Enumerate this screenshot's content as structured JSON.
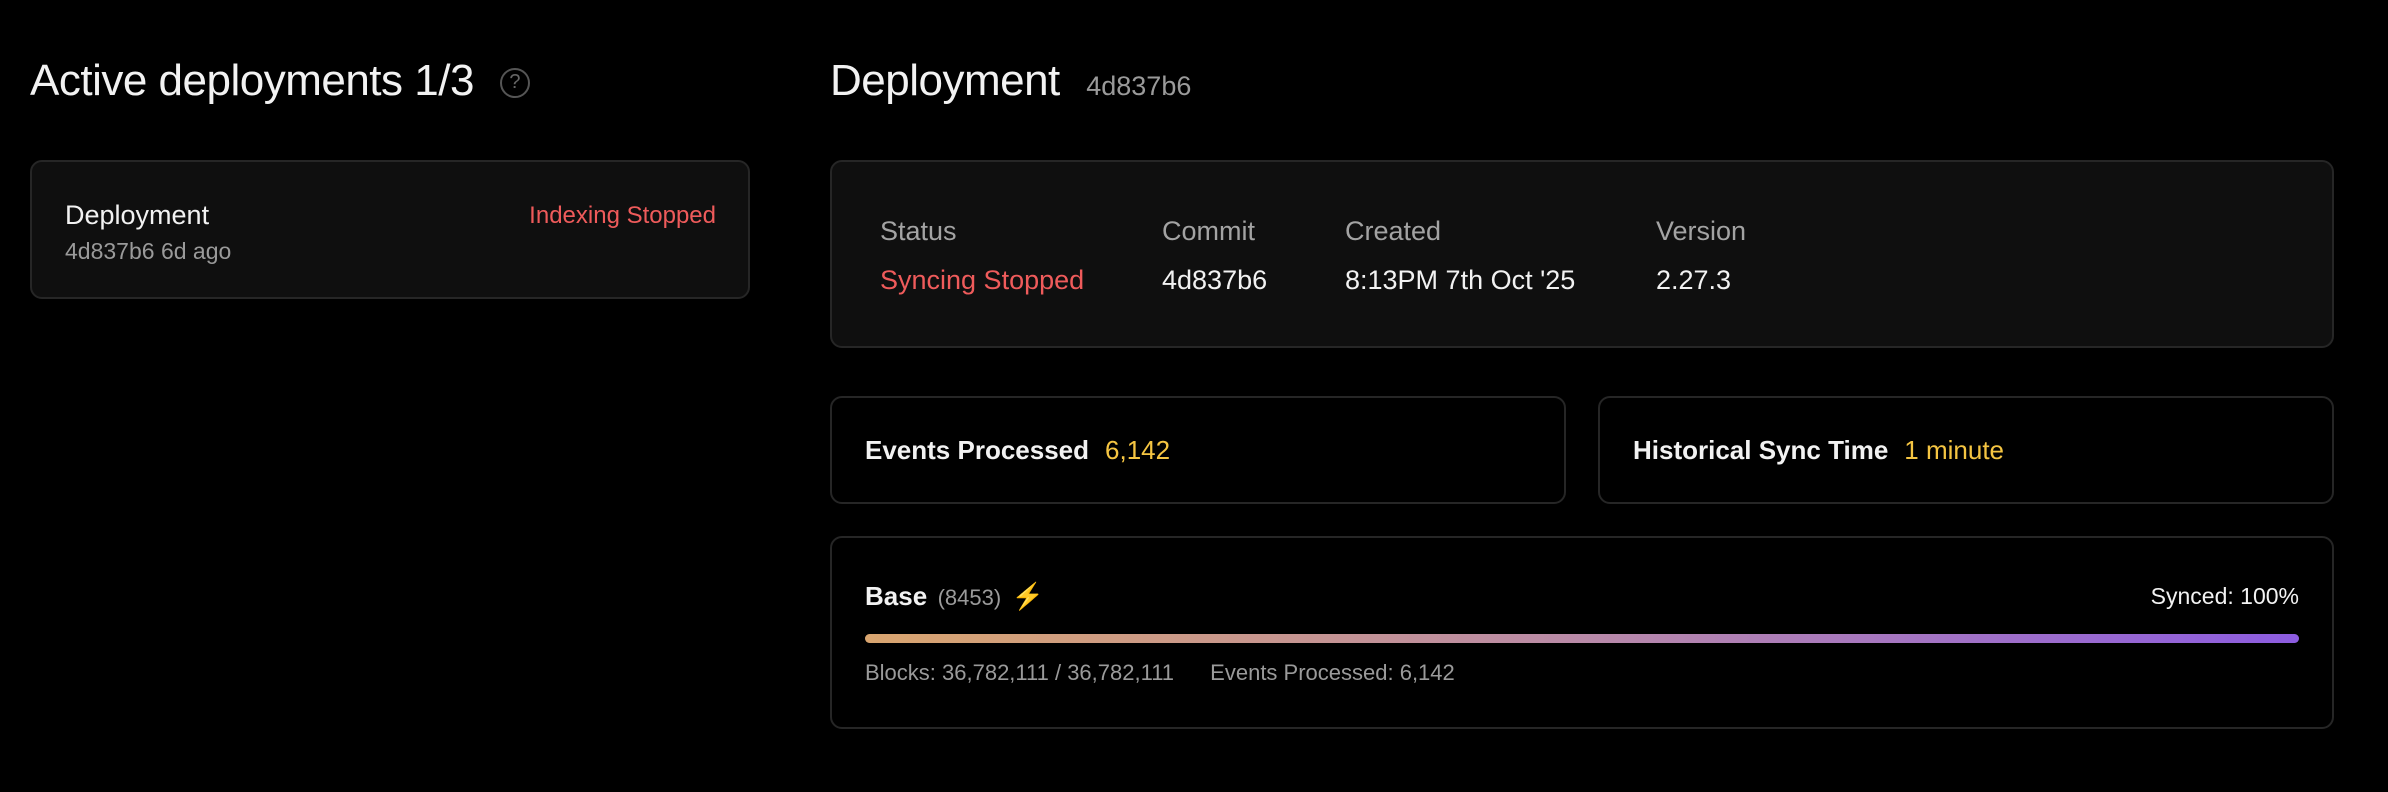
{
  "left": {
    "title": "Active deployments",
    "count": "1/3",
    "help_icon": "question-circle-icon",
    "deployments": [
      {
        "name": "Deployment",
        "commit": "4d837b6",
        "age": "6d ago",
        "status": "Indexing Stopped"
      }
    ]
  },
  "right": {
    "title": "Deployment",
    "commit": "4d837b6",
    "info": [
      {
        "label": "Status",
        "value": "Syncing Stopped"
      },
      {
        "label": "Commit",
        "value": "4d837b6"
      },
      {
        "label": "Created",
        "value": "8:13PM 7th Oct '25"
      },
      {
        "label": "Version",
        "value": "2.27.3"
      }
    ],
    "events": {
      "label": "Events Processed",
      "value": "6,142"
    },
    "sync_time": {
      "label": "Historical Sync Time",
      "value": "1 minute"
    },
    "chain": {
      "name": "Base",
      "id": "(8453)",
      "icon": "lightning-icon",
      "synced_label": "Synced: 100%",
      "progress_percent": 100,
      "blocks": "Blocks: 36,782,111 / 36,782,111",
      "events": "Events Processed: 6,142"
    }
  },
  "colors": {
    "error": "#ef5b5b",
    "highlight": "#f5c542",
    "gradient_start": "#d9a56f",
    "gradient_end": "#8c5ce0"
  }
}
